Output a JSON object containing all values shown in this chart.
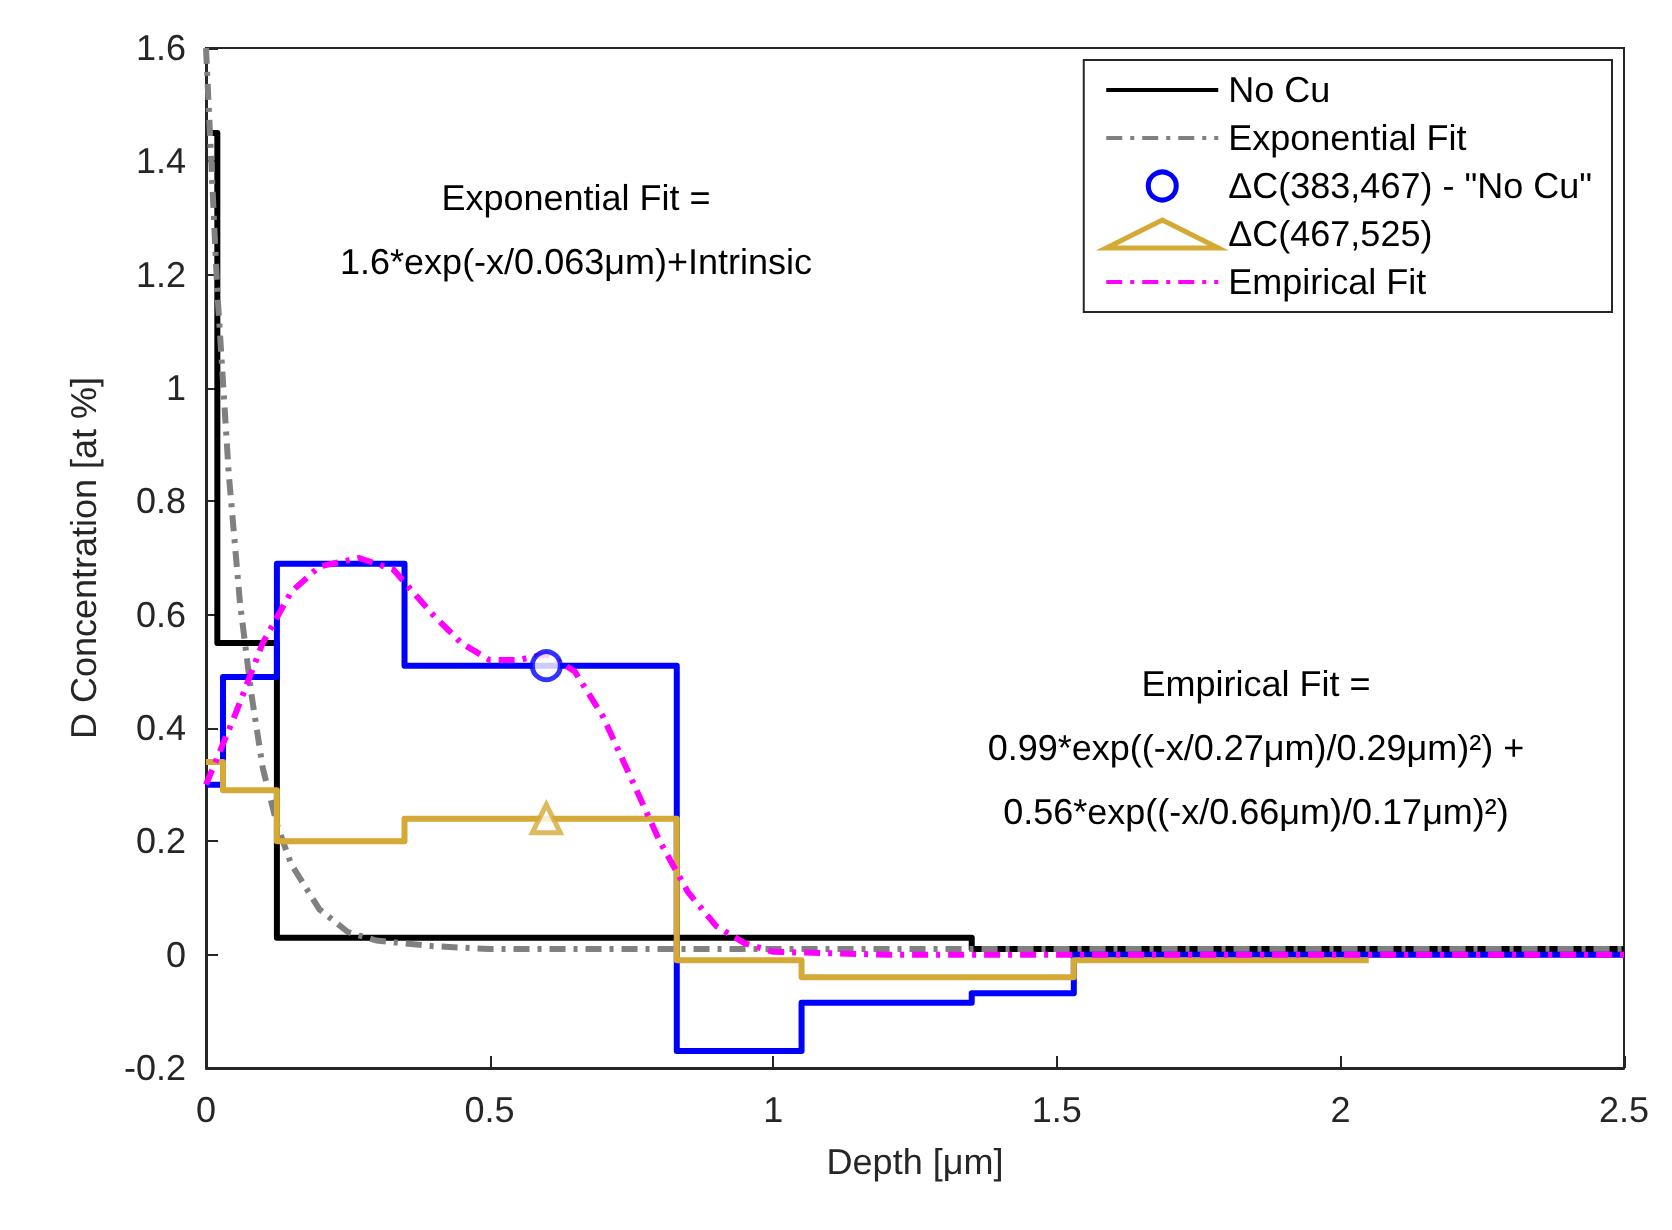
{
  "chart_data": {
    "type": "line",
    "xlabel": "Depth [μm]",
    "ylabel": "D Concentration [at %]",
    "xlim": [
      0,
      2.5
    ],
    "xticks": [
      0,
      0.5,
      1,
      1.5,
      2,
      2.5
    ],
    "ylim": [
      -0.2,
      1.6
    ],
    "yticks": [
      -0.2,
      0,
      0.2,
      0.4,
      0.6,
      0.8,
      1,
      1.2,
      1.4,
      1.6
    ],
    "grid": false,
    "legend": "top right",
    "annotations": [
      "Exponential Fit =\n1.6*exp(-x/0.063μm)+Intrinsic",
      "Empirical Fit =\n0.99*exp((-x/0.27μm)/0.29μm)²) +\n0.56*exp((-x/0.66μm)/0.17μm)²)"
    ],
    "series": [
      {
        "name": "No Cu",
        "color": "#000000",
        "line_style": "solid",
        "x": [
          0.01,
          0.02,
          0.02,
          0.125,
          0.125,
          1.35,
          1.35,
          2.5
        ],
        "values": [
          1.45,
          1.45,
          0.55,
          0.55,
          0.03,
          0.03,
          0.01,
          0.01
        ]
      },
      {
        "name": "Exponential Fit",
        "color": "#808080",
        "line_style": "dashed",
        "x": [
          0,
          0.02,
          0.04,
          0.06,
          0.08,
          0.1,
          0.125,
          0.15,
          0.2,
          0.25,
          0.3,
          0.4,
          0.5,
          1,
          2.5
        ],
        "values": [
          1.6,
          1.17,
          0.85,
          0.62,
          0.46,
          0.33,
          0.23,
          0.16,
          0.08,
          0.04,
          0.025,
          0.015,
          0.01,
          0.01,
          0.01
        ]
      },
      {
        "name": "ΔC(383,467) - \"No Cu\"",
        "color": "#0000ff",
        "line_style": "solid",
        "x": [
          0,
          0.03,
          0.03,
          0.125,
          0.125,
          0.35,
          0.35,
          0.83,
          0.83,
          1.05,
          1.05,
          1.35,
          1.35,
          1.53,
          1.53,
          2.5
        ],
        "values": [
          0.3,
          0.3,
          0.49,
          0.49,
          0.69,
          0.69,
          0.51,
          0.51,
          -0.17,
          -0.17,
          -0.085,
          -0.085,
          -0.068,
          -0.068,
          0,
          0
        ]
      },
      {
        "type": "scatter",
        "color": "#0000ff",
        "marker": "circle",
        "x": [
          0.6
        ],
        "values": [
          0.51
        ]
      },
      {
        "name": "ΔC(467,525)",
        "color": "#d4a935",
        "line_style": "solid",
        "x": [
          0,
          0.03,
          0.03,
          0.125,
          0.125,
          0.35,
          0.35,
          0.83,
          0.83,
          1.05,
          1.05,
          1.53,
          1.53,
          2.05
        ],
        "values": [
          0.34,
          0.34,
          0.29,
          0.29,
          0.2,
          0.2,
          0.24,
          0.24,
          -0.01,
          -0.01,
          -0.04,
          -0.04,
          -0.01,
          -0.01
        ]
      },
      {
        "type": "scatter",
        "color": "#d4a935",
        "marker": "triangle",
        "x": [
          0.6
        ],
        "values": [
          0.24
        ]
      },
      {
        "name": "Empirical Fit",
        "color": "#ff00ff",
        "line_style": "dashed",
        "x": [
          0,
          0.05,
          0.1,
          0.15,
          0.2,
          0.27,
          0.33,
          0.4,
          0.45,
          0.5,
          0.55,
          0.6,
          0.65,
          0.7,
          0.75,
          0.8,
          0.85,
          0.9,
          0.95,
          1,
          1.2,
          2.5
        ],
        "values": [
          0.3,
          0.42,
          0.55,
          0.64,
          0.685,
          0.7,
          0.68,
          0.6,
          0.55,
          0.52,
          0.52,
          0.53,
          0.5,
          0.42,
          0.31,
          0.2,
          0.11,
          0.05,
          0.02,
          0.005,
          0,
          0
        ]
      }
    ]
  }
}
